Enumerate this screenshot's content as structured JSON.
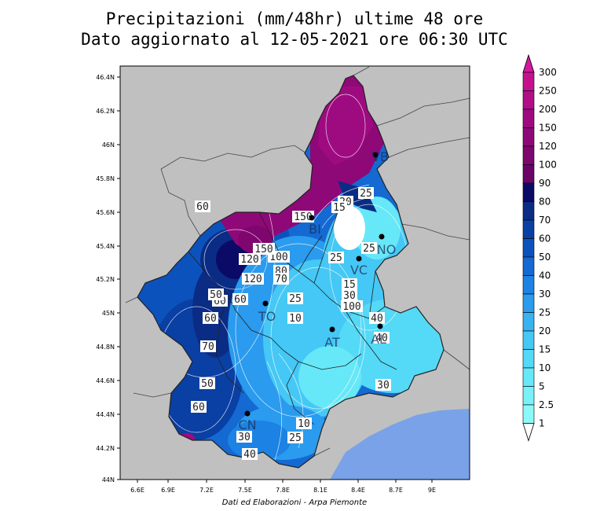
{
  "title_line1": "Precipitazioni (mm/48hr) ultime 48 ore",
  "title_line2": "Dato aggiornato al 12-05-2021 ore 06:30 UTC",
  "credit": "Dati ed Elaborazioni - Arpa Piemonte",
  "lon_ticks": [
    "6.6E",
    "6.9E",
    "7.2E",
    "7.5E",
    "7.8E",
    "8.1E",
    "8.4E",
    "8.7E",
    "9E"
  ],
  "lat_ticks": [
    "46.4N",
    "46.2N",
    "46N",
    "45.8N",
    "45.6N",
    "45.4N",
    "45.2N",
    "45N",
    "44.8N",
    "44.6N",
    "44.4N",
    "44.2N",
    "44N"
  ],
  "colorbar": {
    "labels": [
      "300",
      "250",
      "200",
      "150",
      "120",
      "100",
      "90",
      "80",
      "70",
      "60",
      "50",
      "40",
      "30",
      "25",
      "20",
      "15",
      "10",
      "5",
      "2.5",
      "1"
    ],
    "colors": [
      "#c4128f",
      "#b00f86",
      "#9e0b80",
      "#8f0878",
      "#7f066f",
      "#6a0467",
      "#0b0a66",
      "#0a2c85",
      "#0a3fa3",
      "#0c52bc",
      "#1469d2",
      "#1c82e4",
      "#2a9bee",
      "#37b3f2",
      "#45c8f5",
      "#54d9f7",
      "#66e8f8",
      "#78f2f8",
      "#8cf9f9",
      "#a6fcfb"
    ]
  },
  "legend_cap_colors": {
    "top": "#d617a0",
    "bottom": "#ffffff"
  },
  "map": {
    "sea_color": "#7aa2e8",
    "outside_color": "#c0c0c0",
    "contour_labels": [
      "150",
      "120",
      "100",
      "80",
      "70",
      "60",
      "60",
      "60",
      "70",
      "60",
      "50",
      "60",
      "30",
      "40",
      "25",
      "10",
      "25",
      "15",
      "30",
      "25",
      "25",
      "20",
      "15",
      "10",
      "40",
      "40",
      "30",
      "25",
      "120",
      "150",
      "50",
      "100"
    ],
    "cities": [
      "TO",
      "AT",
      "CN",
      "VC",
      "NO",
      "AL",
      "BI",
      "VB"
    ]
  }
}
